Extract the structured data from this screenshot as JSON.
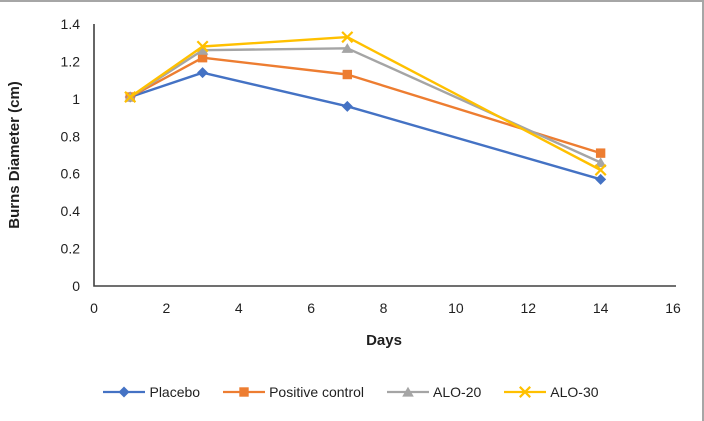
{
  "chart_data": {
    "type": "line",
    "title": "",
    "xlabel": "Days",
    "ylabel": "Burns Diameter (cm)",
    "x": [
      1,
      3,
      7,
      14
    ],
    "series": [
      {
        "name": "Placebo",
        "marker": "diamond",
        "color": "#4472C4",
        "values": [
          1.01,
          1.14,
          0.96,
          0.57
        ]
      },
      {
        "name": "Positive control",
        "marker": "square",
        "color": "#ED7D31",
        "values": [
          1.01,
          1.22,
          1.13,
          0.71
        ]
      },
      {
        "name": "ALO-20",
        "marker": "triangle",
        "color": "#A5A5A5",
        "values": [
          1.01,
          1.26,
          1.27,
          0.66
        ]
      },
      {
        "name": "ALO-30",
        "marker": "x",
        "color": "#FFC000",
        "values": [
          1.01,
          1.28,
          1.33,
          0.62
        ]
      }
    ],
    "xlim": [
      0,
      16
    ],
    "ylim": [
      0,
      1.4
    ],
    "x_ticks": [
      0,
      2,
      4,
      6,
      8,
      10,
      12,
      14,
      16
    ],
    "y_ticks": [
      0,
      0.2,
      0.4,
      0.6,
      0.8,
      1,
      1.2,
      1.4
    ],
    "grid": false,
    "legend_position": "bottom",
    "axis_color": "#404040",
    "text_color": "#1f1f1f"
  }
}
